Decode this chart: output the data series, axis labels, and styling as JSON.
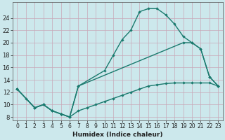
{
  "xlabel": "Humidex (Indice chaleur)",
  "bg_color": "#cce8ec",
  "grid_color": "#b8d8dc",
  "line_color": "#1a7a6e",
  "xlim": [
    -0.5,
    23.5
  ],
  "ylim": [
    7.5,
    26.5
  ],
  "xticks": [
    0,
    1,
    2,
    3,
    4,
    5,
    6,
    7,
    8,
    9,
    10,
    11,
    12,
    13,
    14,
    15,
    16,
    17,
    18,
    19,
    20,
    21,
    22,
    23
  ],
  "yticks": [
    8,
    10,
    12,
    14,
    16,
    18,
    20,
    22,
    24
  ],
  "line1_x": [
    0,
    1,
    2,
    3,
    4,
    5,
    6,
    7,
    10,
    11,
    12,
    13,
    14,
    15,
    16,
    17,
    18,
    19,
    20,
    21,
    22,
    23
  ],
  "line1_y": [
    12.5,
    11,
    9.5,
    10,
    9,
    8.5,
    8,
    13,
    15.5,
    18,
    20.5,
    22,
    25,
    25.5,
    25.5,
    24.5,
    23,
    21,
    20,
    19,
    14.5,
    13
  ],
  "line2_x": [
    0,
    2,
    3,
    4,
    5,
    6,
    7,
    19,
    20,
    21,
    22,
    23
  ],
  "line2_y": [
    12.5,
    9.5,
    10,
    9,
    8.5,
    8,
    13,
    20,
    20,
    19,
    14.5,
    13
  ],
  "line3_x": [
    0,
    2,
    3,
    4,
    5,
    6,
    7,
    8,
    9,
    10,
    11,
    12,
    13,
    14,
    15,
    16,
    17,
    18,
    19,
    20,
    21,
    22,
    23
  ],
  "line3_y": [
    12.5,
    9.5,
    10,
    9,
    8.5,
    8,
    9,
    9.5,
    10,
    10.5,
    11,
    11.5,
    12,
    12.5,
    13,
    13.2,
    13.4,
    13.5,
    13.5,
    13.5,
    13.5,
    13.5,
    13
  ]
}
